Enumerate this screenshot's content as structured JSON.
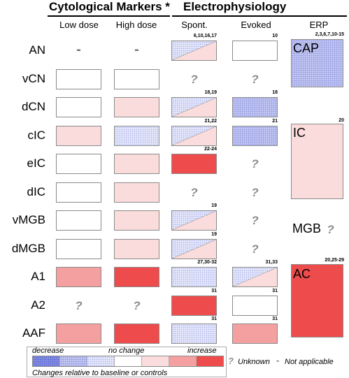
{
  "headers": {
    "cytological": "Cytological Markers *",
    "electrophysiology": "Electrophysiology",
    "low_dose": "Low dose",
    "high_dose": "High dose",
    "spont": "Spont.",
    "evoked": "Evoked",
    "erp": "ERP"
  },
  "rows": [
    {
      "label": "AN",
      "low": "na",
      "high": "na",
      "spont": {
        "split": [
          "m1",
          "1"
        ]
      },
      "spont_ref": "6,10,16,17",
      "evoked": "0",
      "evoked_ref": "10"
    },
    {
      "label": "vCN",
      "low": "0",
      "high": "0",
      "spont": "q",
      "spont_ref": "",
      "evoked": "q",
      "evoked_ref": ""
    },
    {
      "label": "dCN",
      "low": "0",
      "high": "1",
      "spont": {
        "split": [
          "m1",
          "1"
        ]
      },
      "spont_ref": "18,19",
      "evoked": "m2",
      "evoked_ref": "18"
    },
    {
      "label": "cIC",
      "low": "1",
      "high": "m1",
      "spont": {
        "split": [
          "m1",
          "1"
        ]
      },
      "spont_ref": "21,22",
      "evoked": "m2",
      "evoked_ref": "21"
    },
    {
      "label": "eIC",
      "low": "0",
      "high": "1",
      "spont": "3",
      "spont_ref": "22-24",
      "evoked": "q",
      "evoked_ref": ""
    },
    {
      "label": "dIC",
      "low": "0",
      "high": "1",
      "spont": "q",
      "spont_ref": "",
      "evoked": "q",
      "evoked_ref": ""
    },
    {
      "label": "vMGB",
      "low": "0",
      "high": "1",
      "spont": {
        "split": [
          "m1",
          "1"
        ]
      },
      "spont_ref": "19",
      "evoked": "q",
      "evoked_ref": ""
    },
    {
      "label": "dMGB",
      "low": "0",
      "high": "1",
      "spont": {
        "split": [
          "m1",
          "1"
        ]
      },
      "spont_ref": "19",
      "evoked": "q",
      "evoked_ref": ""
    },
    {
      "label": "A1",
      "low": "2",
      "high": "3",
      "spont": "m1",
      "spont_ref": "27,30-32",
      "evoked": {
        "split": [
          "m1",
          "1"
        ]
      },
      "evoked_ref": "31,33"
    },
    {
      "label": "A2",
      "low": "q",
      "high": "q",
      "spont": "3",
      "spont_ref": "31",
      "evoked": "0",
      "evoked_ref": "31"
    },
    {
      "label": "AAF",
      "low": "2",
      "high": "3",
      "spont": "m1",
      "spont_ref": "31",
      "evoked": "2",
      "evoked_ref": "31"
    }
  ],
  "erp_boxes": [
    {
      "label": "CAP",
      "ref": "2,3,6,7,10-15",
      "level": "m2"
    },
    {
      "label": "IC",
      "ref": "20",
      "level": "1"
    },
    {
      "label": "MGB",
      "ref": "",
      "level": "q"
    },
    {
      "label": "AC",
      "ref": "20,25-29",
      "level": "3"
    }
  ],
  "symbols": {
    "unknown": "?",
    "not_applicable": "-"
  },
  "legend": {
    "decrease": "decrease",
    "no_change": "no change",
    "increase": "increase",
    "unknown_label": "Unknown",
    "na_label": "Not applicable",
    "caption": "Changes relative to baseline or controls",
    "levels": [
      "m3",
      "m2",
      "m1",
      "0",
      "1",
      "2",
      "3"
    ]
  },
  "colors": {
    "increase_1": "#fbdcdc",
    "increase_2": "#f5a0a0",
    "increase_3": "#ee4c4c",
    "decrease_1": "#e9ebfb",
    "decrease_2": "#c7cbf3",
    "decrease_3": "#8e97e6",
    "no_change": "#ffffff"
  }
}
